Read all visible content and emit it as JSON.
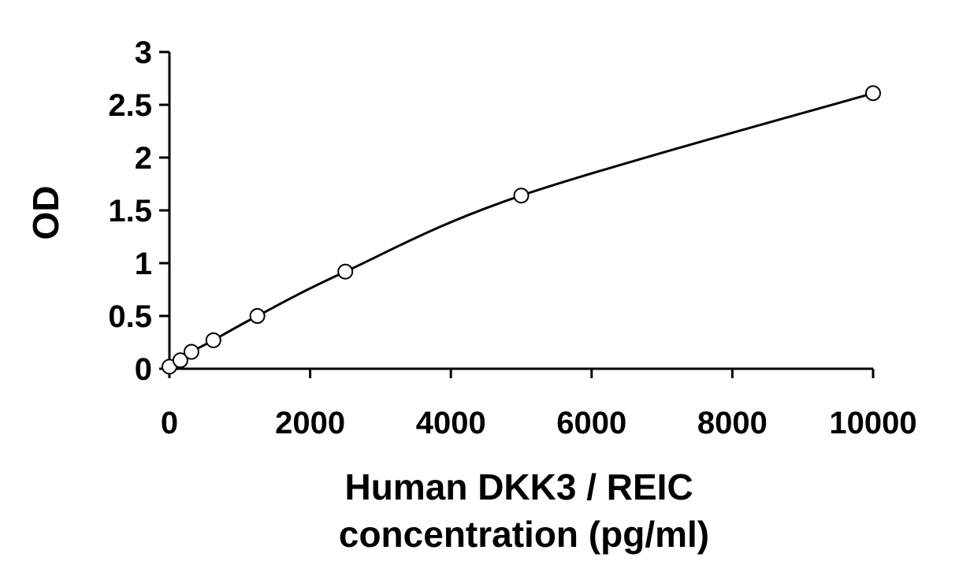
{
  "chart_data": {
    "type": "scatter",
    "title": "",
    "xlabel": "Human DKK3 / REIC concentration (pg/ml)",
    "xlabel_lines": [
      "Human DKK3 / REIC",
      "concentration (pg/ml)"
    ],
    "ylabel": "OD",
    "xlim": [
      0,
      10000
    ],
    "ylim": [
      0,
      3
    ],
    "x_ticks": [
      0,
      2000,
      4000,
      6000,
      8000,
      10000
    ],
    "x_tick_labels": [
      "0",
      "2000",
      "4000",
      "6000",
      "8000",
      "10000"
    ],
    "y_ticks": [
      0,
      0.5,
      1,
      1.5,
      2,
      2.5,
      3
    ],
    "y_tick_labels": [
      "0",
      "0.5",
      "1",
      "1.5",
      "2",
      "2.5",
      "3"
    ],
    "grid": false,
    "legend": "none",
    "series": [
      {
        "marker": "open-circle",
        "trendline": true,
        "points": [
          {
            "x": 0,
            "y": 0.02
          },
          {
            "x": 156,
            "y": 0.08
          },
          {
            "x": 313,
            "y": 0.16
          },
          {
            "x": 625,
            "y": 0.27
          },
          {
            "x": 1250,
            "y": 0.5
          },
          {
            "x": 2500,
            "y": 0.92
          },
          {
            "x": 5000,
            "y": 1.64
          },
          {
            "x": 10000,
            "y": 2.61
          }
        ]
      }
    ]
  }
}
